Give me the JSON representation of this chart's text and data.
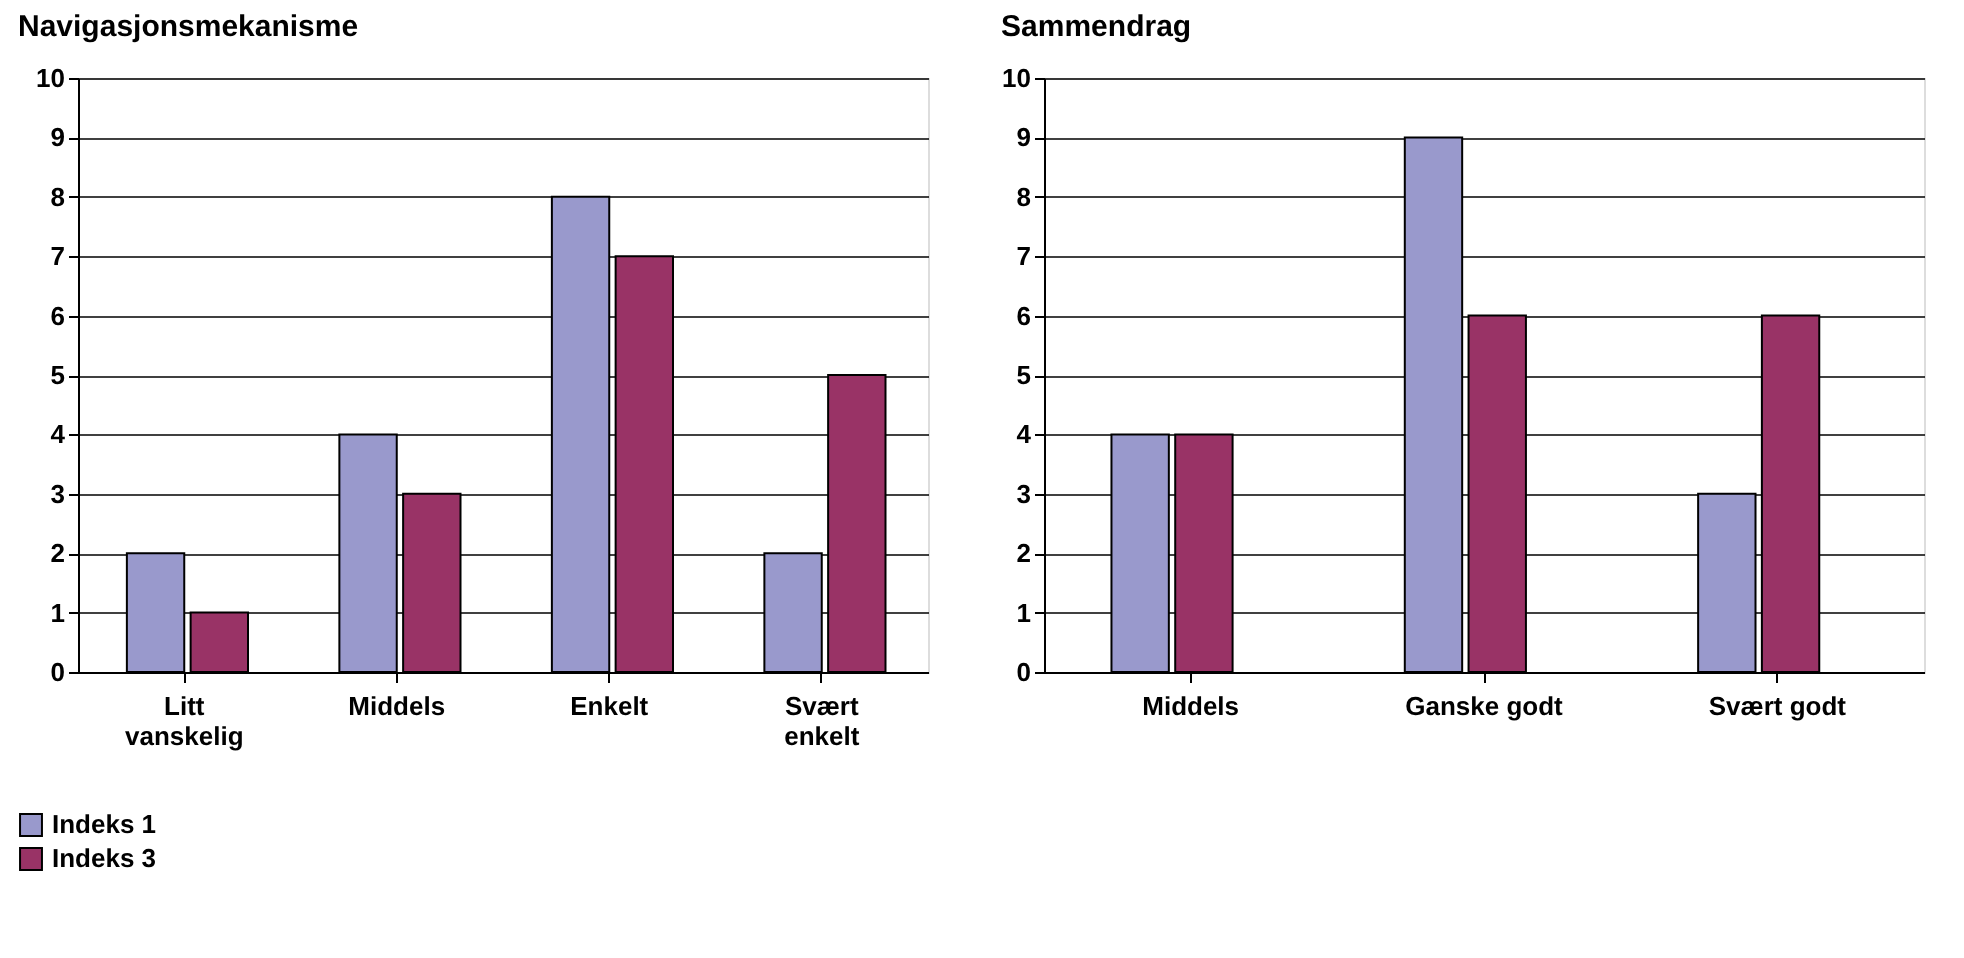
{
  "chart_data": [
    {
      "type": "bar",
      "title": "Navigasjonsmekanisme",
      "categories": [
        "Litt vanskelig",
        "Middels",
        "Enkelt",
        "Svært enkelt"
      ],
      "series": [
        {
          "name": "Indeks 1",
          "color": "#9999cc",
          "values": [
            2,
            4,
            8,
            2
          ]
        },
        {
          "name": "Indeks 3",
          "color": "#993366",
          "values": [
            1,
            3,
            7,
            5
          ]
        }
      ],
      "ylim": [
        0,
        10
      ],
      "yticks": [
        0,
        1,
        2,
        3,
        4,
        5,
        6,
        7,
        8,
        9,
        10
      ],
      "grid": "y",
      "legend": "bottom left"
    },
    {
      "type": "bar",
      "title": "Sammendrag",
      "categories": [
        "Middels",
        "Ganske godt",
        "Svært godt"
      ],
      "series": [
        {
          "color": "#9999cc",
          "values": [
            4,
            9,
            3
          ]
        },
        {
          "color": "#993366",
          "values": [
            4,
            6,
            6
          ]
        }
      ],
      "ylim": [
        0,
        10
      ],
      "yticks": [
        0,
        1,
        2,
        3,
        4,
        5,
        6,
        7,
        8,
        9,
        10
      ],
      "grid": "y",
      "legend": false
    }
  ]
}
